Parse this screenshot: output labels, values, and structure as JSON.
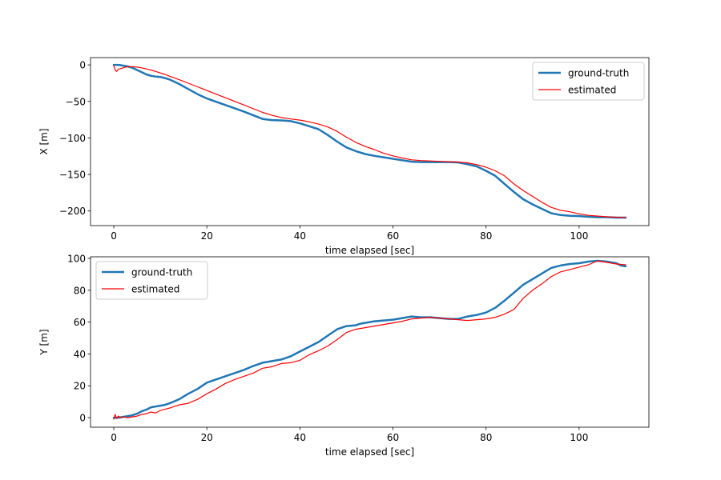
{
  "chart_data": [
    {
      "type": "line",
      "xlabel": "time elapsed [sec]",
      "ylabel": "X [m]",
      "xlim": [
        -5,
        115
      ],
      "ylim": [
        -220,
        10
      ],
      "xticks": [
        0,
        20,
        40,
        60,
        80,
        100
      ],
      "yticks": [
        0,
        -50,
        -100,
        -150,
        -200
      ],
      "legend_position": "upper-right",
      "grid": false,
      "series": [
        {
          "name": "ground-truth",
          "color": "#1f77b4",
          "line_width": "thick",
          "x": [
            0,
            1,
            2,
            3,
            4,
            5,
            6,
            7,
            8,
            9,
            10,
            11,
            12,
            14,
            16,
            18,
            20,
            24,
            28,
            32,
            34,
            36,
            38,
            40,
            42,
            44,
            46,
            48,
            50,
            52,
            54,
            56,
            58,
            60,
            62,
            64,
            66,
            68,
            70,
            72,
            74,
            76,
            78,
            80,
            82,
            84,
            86,
            88,
            90,
            92,
            94,
            96,
            98,
            100,
            102,
            104,
            106,
            108,
            110
          ],
          "y": [
            0,
            0,
            -1,
            -2,
            -4,
            -7,
            -10,
            -13,
            -15,
            -16,
            -16.5,
            -18,
            -20,
            -26,
            -33,
            -40,
            -46,
            -55,
            -64,
            -74,
            -75.5,
            -76,
            -77,
            -80,
            -84,
            -88,
            -96,
            -105,
            -113,
            -118,
            -122,
            -124.5,
            -126.5,
            -128.5,
            -130.5,
            -132.5,
            -133,
            -133,
            -133,
            -133,
            -133.5,
            -136,
            -139,
            -145,
            -152,
            -163,
            -174,
            -184,
            -191,
            -197,
            -203,
            -205.5,
            -206.5,
            -207,
            -208,
            -208.5,
            -208.5,
            -209,
            -209
          ]
        },
        {
          "name": "estimated",
          "color": "#ff0000",
          "line_width": "thin",
          "x": [
            0,
            0.3,
            0.6,
            1,
            1.5,
            2,
            2.5,
            3,
            4,
            5,
            6,
            7,
            8,
            9,
            10,
            11,
            12,
            14,
            16,
            18,
            20,
            22,
            24,
            28,
            32,
            34,
            36,
            38,
            40,
            42,
            44,
            46,
            48,
            50,
            52,
            54,
            56,
            58,
            60,
            62,
            64,
            66,
            68,
            70,
            72,
            74,
            76,
            78,
            80,
            82,
            84,
            86,
            88,
            90,
            92,
            94,
            96,
            98,
            100,
            102,
            104,
            106,
            108,
            110
          ],
          "y": [
            -1,
            -7,
            -9,
            -6,
            -5,
            -4,
            -3,
            -2.5,
            -2.5,
            -3,
            -4,
            -5.5,
            -7,
            -9,
            -11,
            -13,
            -15.5,
            -20,
            -25,
            -30,
            -35,
            -40,
            -45,
            -55,
            -65,
            -69,
            -72,
            -74,
            -75.5,
            -78,
            -81,
            -85,
            -91,
            -99,
            -106,
            -111.5,
            -116,
            -121,
            -124.5,
            -127.5,
            -130,
            -131,
            -131.5,
            -132,
            -132.5,
            -133,
            -134,
            -136.5,
            -140,
            -145,
            -152,
            -163,
            -172,
            -180,
            -188,
            -195,
            -199,
            -201,
            -204,
            -206,
            -207,
            -208,
            -208.5,
            -209
          ]
        }
      ]
    },
    {
      "type": "line",
      "xlabel": "time elapsed [sec]",
      "ylabel": "Y [m]",
      "xlim": [
        -5,
        115
      ],
      "ylim": [
        -6,
        101
      ],
      "xticks": [
        0,
        20,
        40,
        60,
        80,
        100
      ],
      "yticks": [
        0,
        20,
        40,
        60,
        80,
        100
      ],
      "legend_position": "upper-left",
      "grid": false,
      "series": [
        {
          "name": "ground-truth",
          "color": "#1f77b4",
          "line_width": "thick",
          "x": [
            0,
            1,
            2,
            3,
            4,
            5,
            6,
            7,
            8,
            9,
            10,
            11,
            12,
            14,
            16,
            18,
            19,
            20,
            22,
            24,
            26,
            28,
            30,
            32,
            34,
            36,
            38,
            40,
            42,
            44,
            46,
            48,
            50,
            52,
            53,
            54,
            56,
            58,
            60,
            62,
            64,
            66,
            68,
            70,
            72,
            74,
            76,
            78,
            80,
            82,
            84,
            86,
            88,
            90,
            92,
            94,
            96,
            98,
            100,
            102,
            104,
            106,
            108,
            109,
            110
          ],
          "y": [
            0,
            0,
            0.5,
            1,
            1.5,
            2.5,
            4,
            5,
            6.5,
            7,
            7.5,
            8,
            9,
            11.5,
            15,
            18,
            20,
            22,
            24,
            26,
            28,
            30,
            32.5,
            34.5,
            35.5,
            36.5,
            38.5,
            41.5,
            44.5,
            47.5,
            51.5,
            55.5,
            57.5,
            58,
            59,
            59.5,
            60.5,
            61,
            61.5,
            62.5,
            63.5,
            63,
            63,
            62.5,
            62,
            62,
            63.5,
            64.5,
            66,
            69,
            73.5,
            78.5,
            83.5,
            87,
            90.5,
            94,
            95.5,
            96.5,
            97,
            98,
            98.5,
            98,
            97,
            95.5,
            95
          ]
        },
        {
          "name": "estimated",
          "color": "#ff0000",
          "line_width": "thin",
          "x": [
            0,
            0.3,
            0.6,
            1,
            1.5,
            2,
            3,
            4,
            5,
            6,
            7,
            8,
            9,
            10,
            12,
            14,
            16,
            18,
            20,
            22,
            24,
            26,
            28,
            30,
            32,
            34,
            36,
            38,
            40,
            42,
            44,
            46,
            48,
            50,
            52,
            54,
            56,
            58,
            60,
            62,
            64,
            66,
            68,
            70,
            72,
            74,
            76,
            78,
            80,
            82,
            84,
            86,
            88,
            90,
            92,
            94,
            96,
            98,
            100,
            102,
            104,
            106,
            108,
            110
          ],
          "y": [
            -1,
            2,
            -0.5,
            1,
            0,
            0.5,
            0,
            0.5,
            1,
            2,
            2.5,
            3.5,
            3,
            4.5,
            6,
            8,
            9,
            11.5,
            15,
            18,
            21.5,
            24,
            26,
            28,
            31,
            32,
            34,
            34.5,
            36,
            39.5,
            42,
            45,
            49,
            53.5,
            55.5,
            56.5,
            57.5,
            58.5,
            59.5,
            60.5,
            62,
            62.5,
            63,
            62.5,
            62,
            61.5,
            61,
            61.5,
            62,
            63,
            65,
            68,
            75,
            80,
            84,
            88.5,
            91.5,
            93,
            94.5,
            96,
            98.5,
            97.5,
            96.5,
            96
          ]
        }
      ]
    }
  ]
}
